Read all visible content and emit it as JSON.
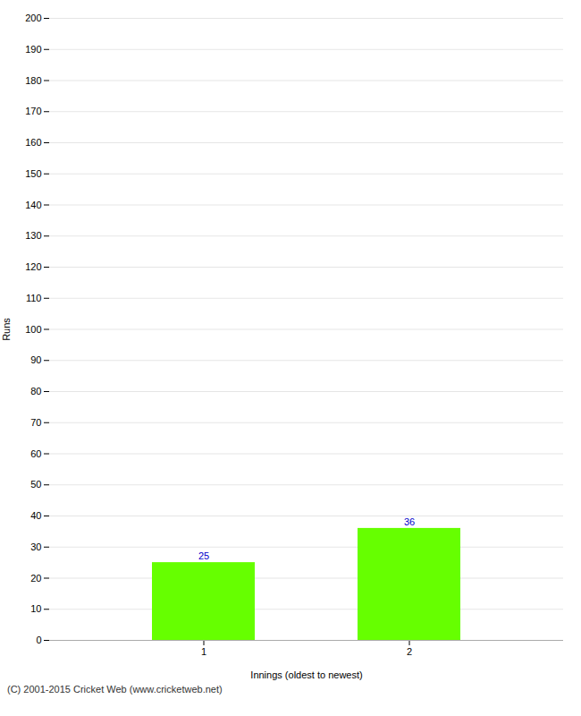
{
  "chart_data": {
    "type": "bar",
    "categories": [
      "1",
      "2"
    ],
    "values": [
      25,
      36
    ],
    "color": "#66ff00",
    "xlabel": "Innings (oldest to newest)",
    "ylabel": "Runs",
    "ylim": [
      0,
      200
    ],
    "yticks": [
      0,
      10,
      20,
      30,
      40,
      50,
      60,
      70,
      80,
      90,
      100,
      110,
      120,
      130,
      140,
      150,
      160,
      170,
      180,
      190,
      200
    ],
    "grid": true,
    "data_labels": true,
    "caption": "(C) 2001-2015 Cricket Web (www.cricketweb.net)"
  }
}
